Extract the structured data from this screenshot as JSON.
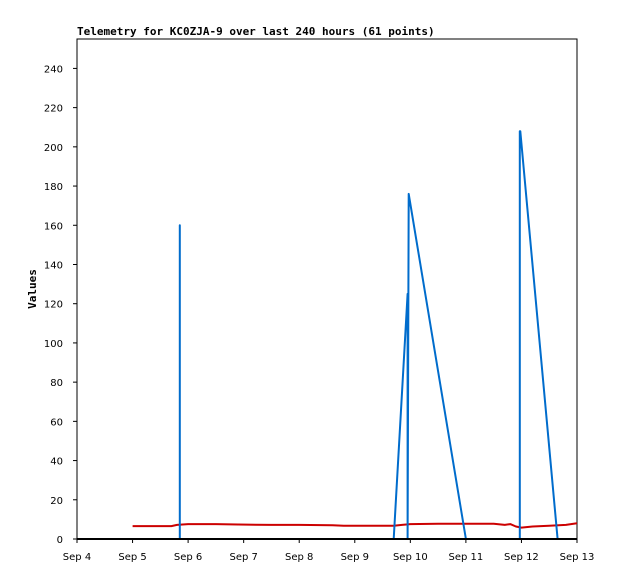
{
  "chart_data": {
    "type": "line",
    "title": "Telemetry for KC0ZJA-9 over last 240 hours (61 points)",
    "xlabel": "",
    "ylabel": "Values",
    "x_tick_labels": [
      "Sep 4",
      "Sep 5",
      "Sep 6",
      "Sep 7",
      "Sep 8",
      "Sep 9",
      "Sep 10",
      "Sep 11",
      "Sep 12",
      "Sep 13"
    ],
    "xlim": [
      4,
      13
    ],
    "y_ticks": [
      0,
      20,
      40,
      60,
      80,
      100,
      120,
      140,
      160,
      180,
      200,
      220,
      240
    ],
    "ylim": [
      0,
      255
    ],
    "grid": false,
    "series": [
      {
        "color": "#cc0000",
        "x": [
          5.0,
          5.7,
          5.8,
          6.0,
          6.5,
          6.9,
          7.5,
          8.0,
          8.6,
          8.8,
          9.2,
          9.7,
          9.85,
          10.0,
          10.5,
          11.0,
          11.5,
          11.7,
          11.8,
          11.9,
          12.0,
          12.2,
          12.5,
          12.8,
          13.0
        ],
        "y": [
          6.6,
          6.6,
          7.2,
          7.6,
          7.6,
          7.4,
          7.2,
          7.2,
          7.0,
          6.8,
          6.8,
          6.8,
          7.2,
          7.6,
          7.8,
          7.8,
          7.8,
          7.2,
          7.6,
          6.4,
          5.8,
          6.4,
          6.8,
          7.2,
          8.0
        ]
      },
      {
        "color": "#006ccc",
        "x": [
          5.85,
          5.85,
          5.85,
          9.7,
          9.95,
          9.95,
          9.97,
          11.0,
          11.97,
          11.97,
          11.98,
          12.65
        ],
        "y": [
          0,
          160,
          0,
          0,
          125,
          0,
          176,
          0,
          0,
          208,
          208,
          0
        ]
      },
      {
        "color": "#000000",
        "x": [
          4.0,
          13.0
        ],
        "y": [
          0,
          0
        ]
      }
    ]
  }
}
